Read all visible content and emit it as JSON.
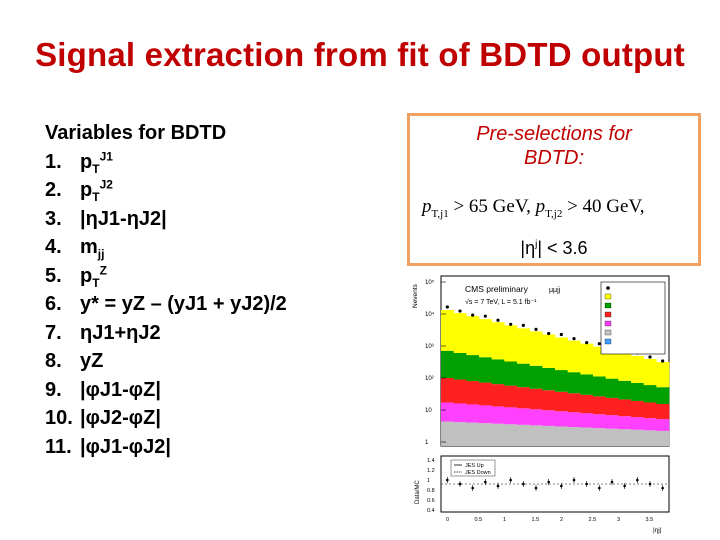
{
  "slide": {
    "title": "Signal extraction from fit of BDTD output"
  },
  "variables": {
    "heading": "Variables for BDTD",
    "items": [
      {
        "num": "1.",
        "base": "p",
        "sub": "T",
        "sup": "J1",
        "rest": ""
      },
      {
        "num": "2.",
        "base": "p",
        "sub": "T",
        "sup": "J2",
        "rest": ""
      },
      {
        "num": "3.",
        "text": "|ηJ1-ηJ2|"
      },
      {
        "num": "4.",
        "base": "m",
        "sub": "jj",
        "sup": "",
        "rest": ""
      },
      {
        "num": "5.",
        "base": "p",
        "sub": "T",
        "sup": "Z",
        "rest": ""
      },
      {
        "num": "6.",
        "text": "y* = yZ – (yJ1 + yJ2)/2"
      },
      {
        "num": "7.",
        "text": "ηJ1+ηJ2"
      },
      {
        "num": "8.",
        "text": "yZ"
      },
      {
        "num": "9.",
        "text": "|φJ1-φZ|"
      },
      {
        "num": "10.",
        "text": "|φJ2-φZ|"
      },
      {
        "num": "11.",
        "text": "|φJ1-φJ2|"
      }
    ]
  },
  "preselection": {
    "title_line1": "Pre-selections for",
    "title_line2": "BDTD:",
    "formula_pt1": "p",
    "formula_pt1_sub": "T,j1",
    "formula_cut1": " > 65 GeV,  ",
    "formula_pt2": "p",
    "formula_pt2_sub": "T,j2",
    "formula_cut2": " > 40 GeV,",
    "eta_cut_prefix": "|η",
    "eta_cut_sup": "j",
    "eta_cut_suffix": "| < 3.6"
  },
  "plot": {
    "experiment_label": "CMS preliminary",
    "channel_label": "μμjj",
    "energy_label": "√s = 7 TeV, L = 5.1 fb⁻¹",
    "y_label": "Nevents",
    "ratio_label": "Data/MC",
    "x_label": "|ηj|",
    "legend_up": "JES Up",
    "legend_down": "JES Down",
    "y_ticks": [
      "10⁵",
      "10⁴",
      "10³",
      "10²",
      "10",
      "1"
    ],
    "ratio_ticks": [
      "1.4",
      "1.2",
      "1",
      "0.8",
      "0.6",
      "0.4"
    ],
    "x_ticks": [
      "0",
      "0.5",
      "1",
      "1.5",
      "2",
      "2.5",
      "3",
      "3.5"
    ],
    "colors": {
      "zjets": "#ffff00",
      "ttbar": "#00a000",
      "diboson": "#ff2020",
      "others": "#ff40ff",
      "qcd": "#c0c0c0",
      "data": "#000000"
    },
    "stack_fractions": [
      0.3,
      0.2,
      0.18,
      0.14,
      0.18
    ]
  }
}
